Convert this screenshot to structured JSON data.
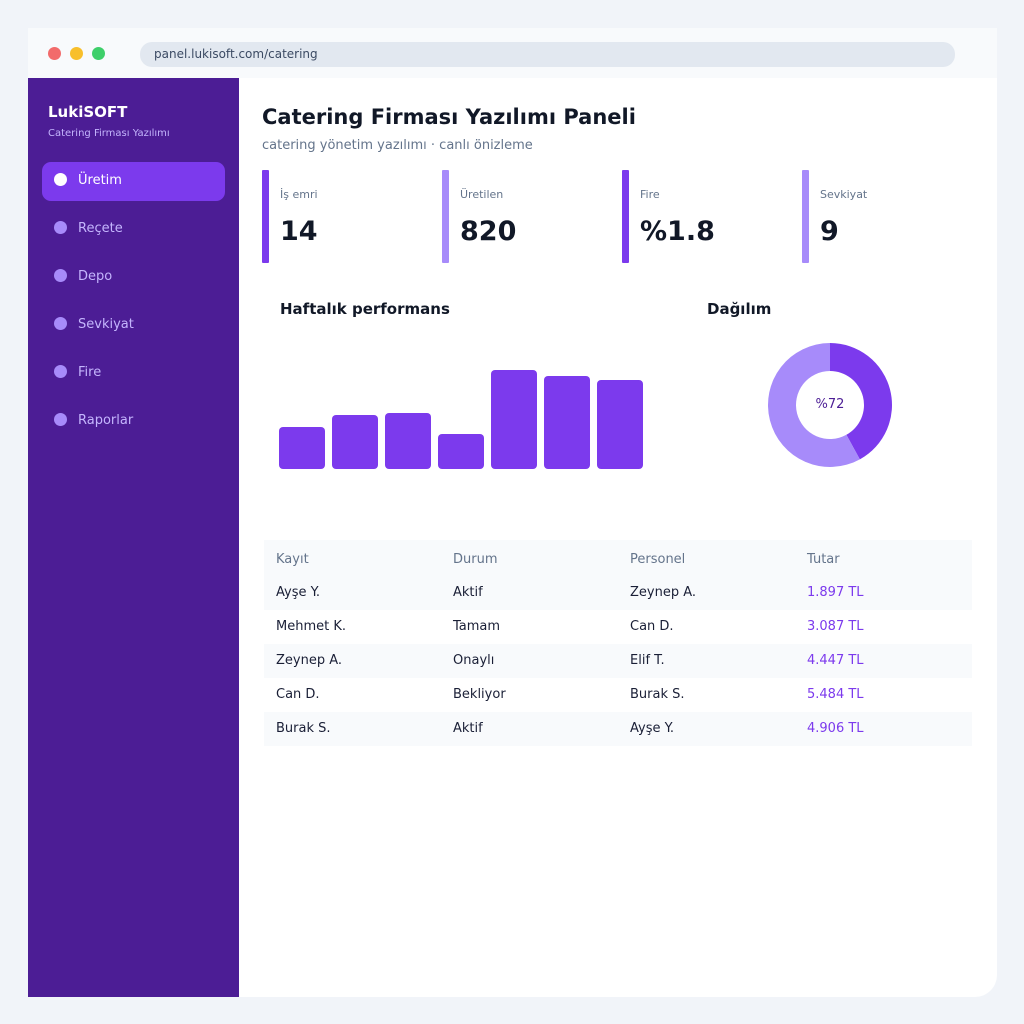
{
  "browser": {
    "url": "panel.lukisoft.com/catering"
  },
  "sidebar": {
    "brand": "LukiSOFT",
    "brand_sub": "Catering Firması Yazılımı",
    "items": [
      {
        "label": "Üretim",
        "active": true
      },
      {
        "label": "Reçete",
        "active": false
      },
      {
        "label": "Depo",
        "active": false
      },
      {
        "label": "Sevkiyat",
        "active": false
      },
      {
        "label": "Fire",
        "active": false
      },
      {
        "label": "Raporlar",
        "active": false
      }
    ]
  },
  "header": {
    "title": "Catering Firması Yazılımı Paneli",
    "subtitle": "catering yönetim yazılımı · canlı önizleme"
  },
  "kpis": [
    {
      "label": "İş emri",
      "value": "14",
      "color": "#7c3aed"
    },
    {
      "label": "Üretilen",
      "value": "820",
      "color": "#a78bfa"
    },
    {
      "label": "Fire",
      "value": "%1.8",
      "color": "#7c3aed"
    },
    {
      "label": "Sevkiyat",
      "value": "9",
      "color": "#a78bfa"
    }
  ],
  "chart_data": [
    {
      "type": "bar",
      "title": "Haftalık performans",
      "categories": [
        "",
        "",
        "",
        "",
        "",
        "",
        ""
      ],
      "values": [
        42,
        53,
        55,
        35,
        98,
        92,
        88
      ],
      "ylim": [
        0,
        100
      ],
      "color": "#7c3aed",
      "grid": false
    },
    {
      "type": "pie",
      "title": "Dağılım",
      "center_label": "%72",
      "values": [
        42,
        58
      ],
      "colors": [
        "#7c3aed",
        "#a78bfa"
      ],
      "donut": true
    }
  ],
  "table": {
    "columns": [
      "Kayıt",
      "Durum",
      "Personel",
      "Tutar"
    ],
    "rows": [
      [
        "Ayşe Y.",
        "Aktif",
        "Zeynep A.",
        "1.897 TL"
      ],
      [
        "Mehmet K.",
        "Tamam",
        "Can D.",
        "3.087 TL"
      ],
      [
        "Zeynep A.",
        "Onaylı",
        "Elif T.",
        "4.447 TL"
      ],
      [
        "Can D.",
        "Bekliyor",
        "Burak S.",
        "5.484 TL"
      ],
      [
        "Burak S.",
        "Aktif",
        "Ayşe Y.",
        "4.906 TL"
      ]
    ]
  }
}
